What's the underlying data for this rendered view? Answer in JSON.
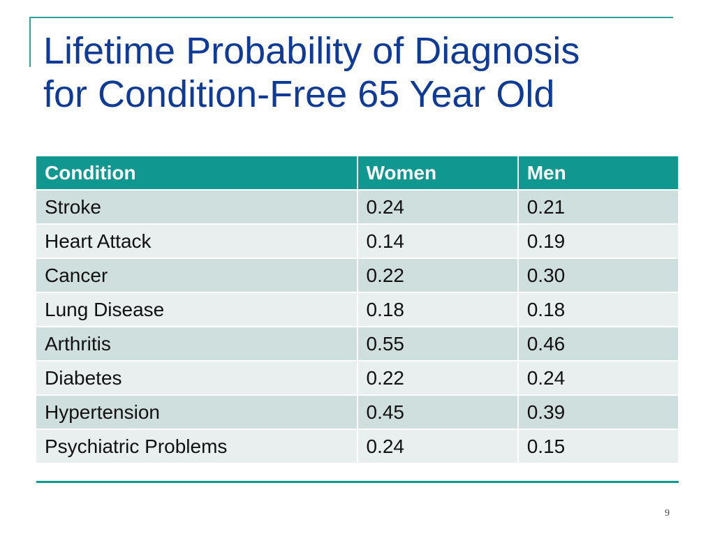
{
  "title": {
    "line1": "Lifetime Probability of Diagnosis",
    "line2": "for Condition-Free 65 Year Old"
  },
  "table": {
    "headers": [
      "Condition",
      "Women",
      "Men"
    ],
    "rows": [
      [
        "Stroke",
        "0.24",
        "0.21"
      ],
      [
        "Heart Attack",
        "0.14",
        "0.19"
      ],
      [
        "Cancer",
        "0.22",
        "0.30"
      ],
      [
        "Lung Disease",
        "0.18",
        "0.18"
      ],
      [
        "Arthritis",
        "0.55",
        "0.46"
      ],
      [
        "Diabetes",
        "0.22",
        "0.24"
      ],
      [
        "Hypertension",
        "0.45",
        "0.39"
      ],
      [
        "Psychiatric Problems",
        "0.24",
        "0.15"
      ]
    ]
  },
  "page_number": "9",
  "colors": {
    "title": "#0f3a95",
    "header_bg": "#0f9790",
    "row_dark": "#cfdfdd",
    "row_light": "#e8efee",
    "accent": "#2aa39a"
  }
}
